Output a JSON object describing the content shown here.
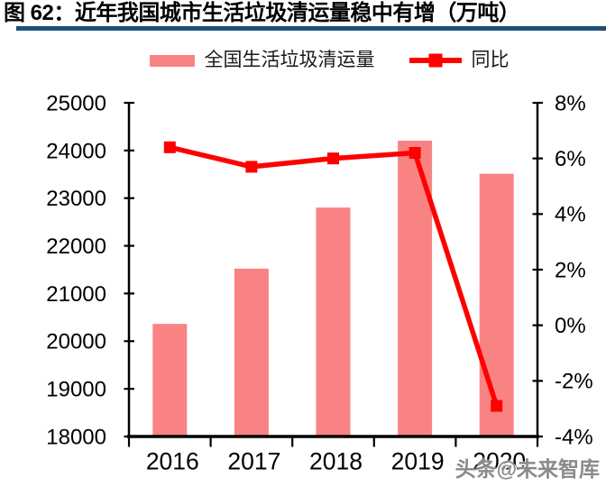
{
  "figure": {
    "title": "图 62：近年我国城市生活垃圾清运量稳中有增（万吨）"
  },
  "watermark": {
    "text": "头条@未来智库"
  },
  "colors": {
    "bar": "#F98383",
    "line": "#FE0000",
    "title_underline": "#1F4E79",
    "axis": "#000000",
    "watermark": "#8a8a8a"
  },
  "chart_data": {
    "type": "bar",
    "subtype": "bar+line combo, dual axis",
    "title": "图 62：近年我国城市生活垃圾清运量稳中有增（万吨）",
    "categories": [
      "2016",
      "2017",
      "2018",
      "2019",
      "2020"
    ],
    "series": [
      {
        "name": "全国生活垃圾清运量",
        "type": "bar",
        "axis": "left",
        "unit": "万吨",
        "color": "#F98383",
        "values": [
          20362,
          21521,
          22802,
          24206,
          23512
        ]
      },
      {
        "name": "同比",
        "type": "line",
        "axis": "right",
        "unit": "%",
        "color": "#FE0000",
        "marker": "square",
        "values": [
          6.4,
          5.7,
          6.0,
          6.2,
          -2.9
        ]
      }
    ],
    "left_axis": {
      "min": 18000,
      "max": 25000,
      "step": 1000
    },
    "right_axis": {
      "min": -4,
      "max": 8,
      "step": 2,
      "suffix": "%"
    },
    "grid": false,
    "legend_position": "top"
  }
}
